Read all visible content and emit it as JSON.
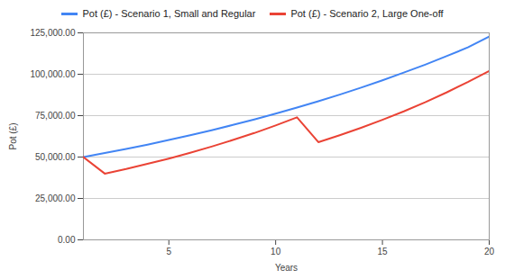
{
  "chart_data": {
    "type": "line",
    "x_label": "Years",
    "y_label": "Pot (£)",
    "x": [
      1,
      2,
      3,
      4,
      5,
      6,
      7,
      8,
      9,
      10,
      11,
      12,
      13,
      14,
      15,
      16,
      17,
      18,
      19,
      20
    ],
    "series": [
      {
        "name": "Pot (£) - Scenario 1, Small and Regular",
        "color": "#4285f4",
        "values": [
          50000,
          52400,
          54900,
          57500,
          60300,
          63200,
          66200,
          69400,
          72700,
          76200,
          79900,
          83700,
          87700,
          91900,
          96300,
          101000,
          105800,
          110900,
          116200,
          122800
        ]
      },
      {
        "name": "Pot (£) - Scenario 2, Large One-off",
        "color": "#ea4335",
        "values": [
          50000,
          40000,
          42800,
          45900,
          49100,
          52600,
          56300,
          60300,
          64500,
          69100,
          74000,
          59000,
          63200,
          67700,
          72500,
          77600,
          83100,
          89000,
          95300,
          102000
        ]
      }
    ],
    "xlim": [
      1,
      20
    ],
    "xticks": [
      5,
      10,
      15,
      20
    ],
    "ylim": [
      0,
      125000
    ],
    "yticks": [
      {
        "value": 0,
        "label": "0.00"
      },
      {
        "value": 25000,
        "label": "25,000.00"
      },
      {
        "value": 50000,
        "label": "50,000.00"
      },
      {
        "value": 75000,
        "label": "75,000.00"
      },
      {
        "value": 100000,
        "label": "100,000.00"
      },
      {
        "value": 125000,
        "label": "125,000.00"
      }
    ],
    "grid": true,
    "legend": "top"
  }
}
